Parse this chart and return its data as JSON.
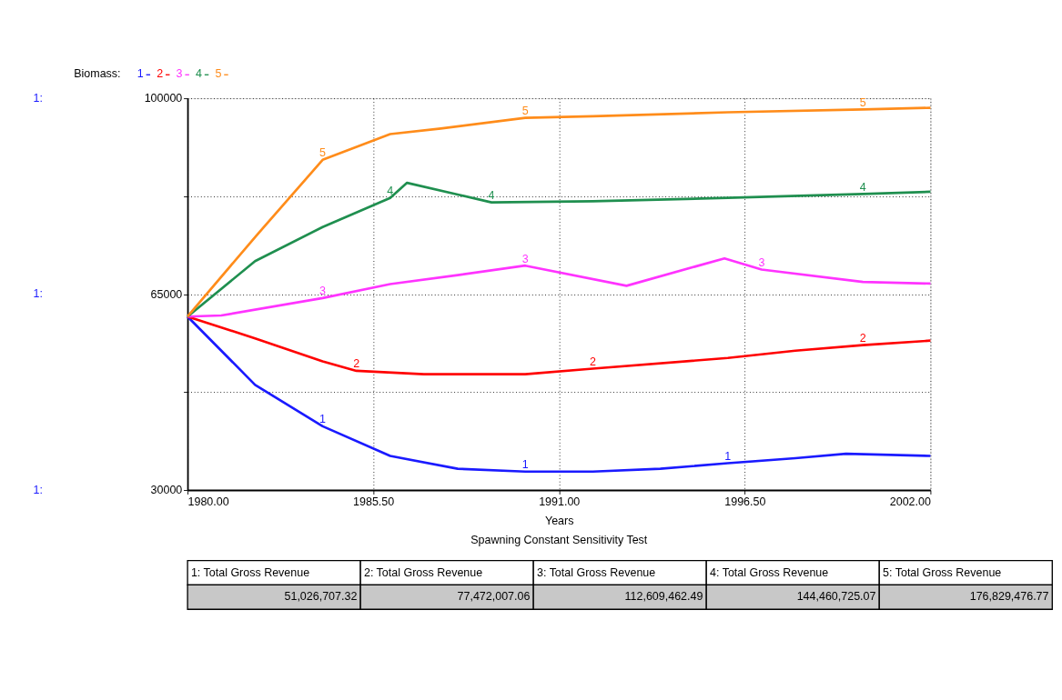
{
  "chart_data": {
    "type": "line",
    "title": "Spawning Constant Sensitivity Test",
    "xlabel": "Years",
    "legend_title": "Biomass:",
    "legend": "top left",
    "grid": true,
    "line_style": "solid",
    "xlim": [
      1980,
      2002
    ],
    "xticks": [
      {
        "value": 1980,
        "label": "1980.00"
      },
      {
        "value": 1985.5,
        "label": "1985.50"
      },
      {
        "value": 1991,
        "label": "1991.00"
      },
      {
        "value": 1996.5,
        "label": "1996.50"
      },
      {
        "value": 2002,
        "label": "2002.00"
      }
    ],
    "ylim": [
      30000,
      100000
    ],
    "yticks": [
      30000,
      {
        "value": 47500,
        "label": null
      },
      65000,
      {
        "value": 82500,
        "label": null
      },
      100000
    ],
    "annotations": [
      "1:",
      "1:",
      "1:",
      "1: Total Gross  Revenue",
      "2: Total Gross  Revenue",
      "3: Total Gross  Revenue",
      "4: Total Gross  Revenue",
      "5: Total Gross  Revenue",
      "51,026,707.32",
      "77,472,007.06",
      "112,609,462.49",
      "144,460,725.07",
      "176,829,476.77"
    ],
    "series": [
      {
        "name": "1",
        "color": "#1a1aff",
        "x": [
          1980,
          1982,
          1984,
          1986,
          1988,
          1990,
          1992,
          1994,
          1996,
          1998,
          1999.5,
          2002
        ],
        "values": [
          61000,
          48800,
          41400,
          36100,
          33800,
          33300,
          33300,
          33800,
          34800,
          35700,
          36500,
          36100
        ]
      },
      {
        "name": "2",
        "color": "#ff0000",
        "x": [
          1980,
          1982,
          1984,
          1985,
          1987,
          1990,
          1992,
          1996,
          1998,
          2000,
          2002
        ],
        "values": [
          61000,
          57100,
          53000,
          51300,
          50700,
          50700,
          51700,
          53600,
          54900,
          55900,
          56700
        ]
      },
      {
        "name": "3",
        "color": "#ff33ff",
        "x": [
          1980,
          1981,
          1984,
          1986,
          1988,
          1990,
          1993,
          1995.9,
          1997,
          2000,
          2002
        ],
        "values": [
          61000,
          61200,
          64300,
          66800,
          68400,
          70100,
          66500,
          71400,
          69400,
          67200,
          66900
        ]
      },
      {
        "name": "4",
        "color": "#1f8f4f",
        "x": [
          1980,
          1982,
          1984,
          1986,
          1986.5,
          1988,
          1989,
          1992,
          1996,
          2000,
          2002
        ],
        "values": [
          61000,
          70900,
          77000,
          82200,
          84900,
          82800,
          81400,
          81600,
          82200,
          82900,
          83300
        ]
      },
      {
        "name": "5",
        "color": "#ff8c1a",
        "x": [
          1980,
          1982,
          1984,
          1986,
          1987.5,
          1990,
          1992,
          1996,
          2000,
          2002
        ],
        "values": [
          61000,
          75200,
          89000,
          93600,
          94600,
          96500,
          96800,
          97500,
          98000,
          98300
        ]
      }
    ]
  }
}
